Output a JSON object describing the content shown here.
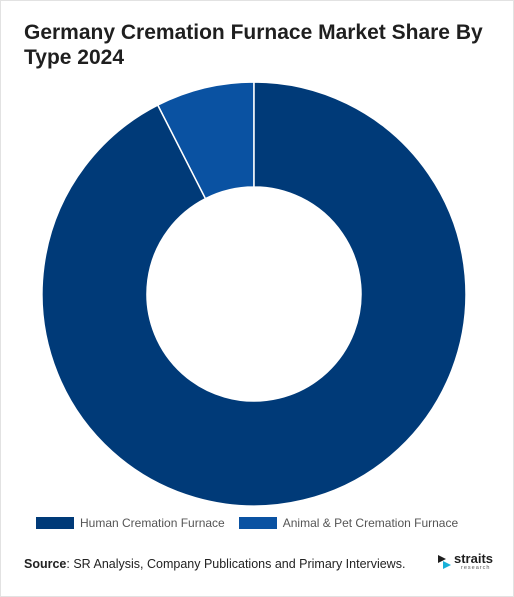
{
  "chart_data": {
    "type": "pie",
    "style": "donut",
    "title": "Germany Cremation Furnace Market Share By Type 2024",
    "categories": [
      "Human Cremation Furnace",
      "Animal & Pet Cremation Furnace"
    ],
    "values": [
      92.5,
      7.5
    ],
    "unit": "%",
    "colors": [
      "#003a78",
      "#0a52a2"
    ],
    "legend_position": "bottom"
  },
  "source": {
    "label": "Source",
    "text": ": SR Analysis, Company Publications and Primary Interviews."
  },
  "logo": {
    "wordmark": "straits",
    "subtext": "research"
  }
}
